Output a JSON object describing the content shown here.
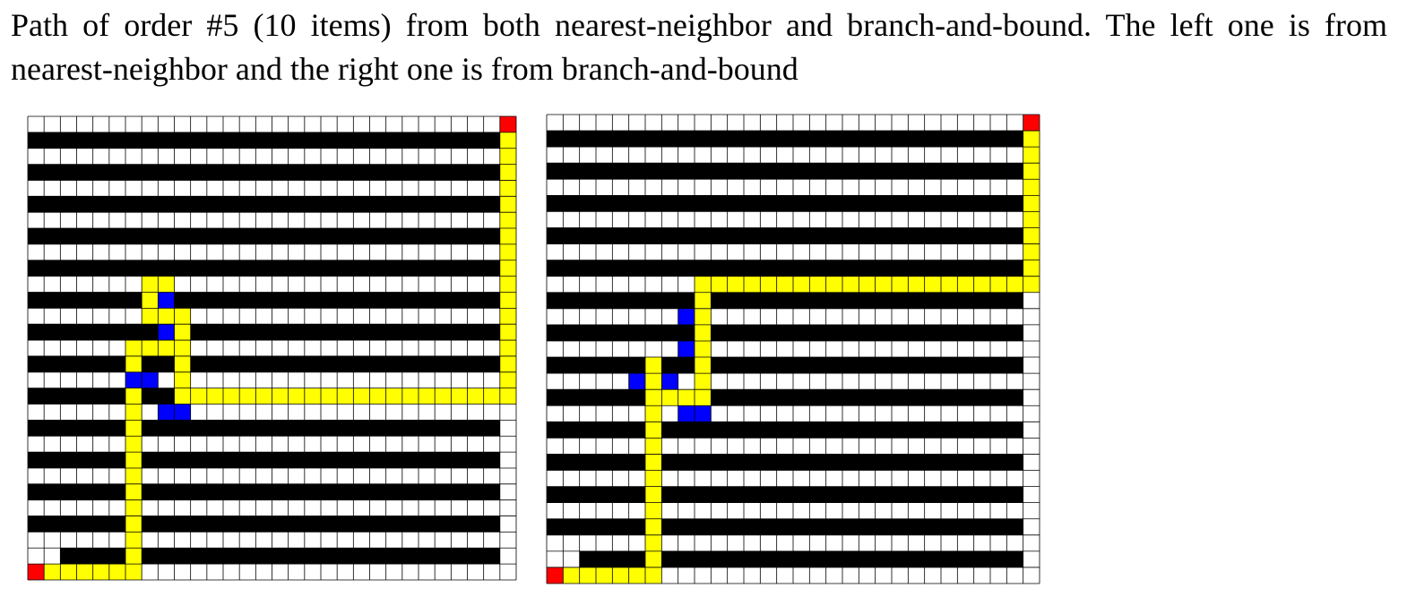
{
  "caption": "Path of order #5 (10 items) from both nearest-neighbor and branch-and-bound. The left one is from nearest-neighbor and the right one is from branch-and-bound",
  "legend_colors": {
    "grid_line": "#000000",
    "cell": "#ffffff",
    "shelf": "#000000",
    "path": "#ffff00",
    "item": "#0000ff",
    "endpoint": "#ff0000"
  },
  "warehouse_grid": {
    "columns": 38,
    "rows": 29
  },
  "panels": [
    {
      "name": "nearest-neighbor",
      "path": [
        [
          0,
          28
        ],
        [
          1,
          28
        ],
        [
          2,
          28
        ],
        [
          3,
          28
        ],
        [
          4,
          28
        ],
        [
          5,
          28
        ],
        [
          6,
          28
        ],
        [
          7,
          28
        ],
        [
          8,
          28
        ],
        [
          8,
          27
        ],
        [
          8,
          26
        ],
        [
          8,
          25
        ],
        [
          8,
          24
        ],
        [
          8,
          23
        ],
        [
          8,
          22
        ],
        [
          8,
          21
        ],
        [
          8,
          20
        ],
        [
          8,
          19
        ],
        [
          8,
          18
        ],
        [
          8,
          17
        ],
        [
          8,
          16
        ],
        [
          8,
          15
        ],
        [
          8,
          14
        ],
        [
          8,
          13
        ],
        [
          8,
          12
        ],
        [
          8,
          11
        ],
        [
          8,
          10
        ],
        [
          9,
          15
        ],
        [
          10,
          15
        ],
        [
          10,
          14
        ],
        [
          10,
          13
        ],
        [
          10,
          12
        ],
        [
          10,
          11
        ],
        [
          10,
          10
        ],
        [
          10,
          9
        ],
        [
          10,
          8
        ],
        [
          10,
          7
        ],
        [
          10,
          6
        ],
        [
          10,
          5
        ],
        [
          10,
          4
        ],
        [
          10,
          3
        ],
        [
          10,
          2
        ],
        [
          10,
          1
        ],
        [
          10,
          0
        ],
        [
          11,
          4
        ],
        [
          12,
          4
        ],
        [
          12,
          5
        ],
        [
          12,
          6
        ],
        [
          12,
          7
        ],
        [
          12,
          8
        ],
        [
          12,
          9
        ],
        [
          12,
          10
        ],
        [
          12,
          11
        ],
        [
          12,
          12
        ],
        [
          12,
          13
        ],
        [
          12,
          14
        ],
        [
          12,
          15
        ],
        [
          11,
          6
        ],
        [
          11,
          7
        ],
        [
          11,
          8
        ],
        [
          11,
          9
        ],
        [
          11,
          10
        ],
        [
          11,
          11
        ],
        [
          11,
          12
        ],
        [
          11,
          13
        ],
        [
          11,
          14
        ],
        [
          11,
          15
        ]
      ],
      "route_cells": "see-script"
    },
    {
      "name": "branch-and-bound"
    }
  ]
}
